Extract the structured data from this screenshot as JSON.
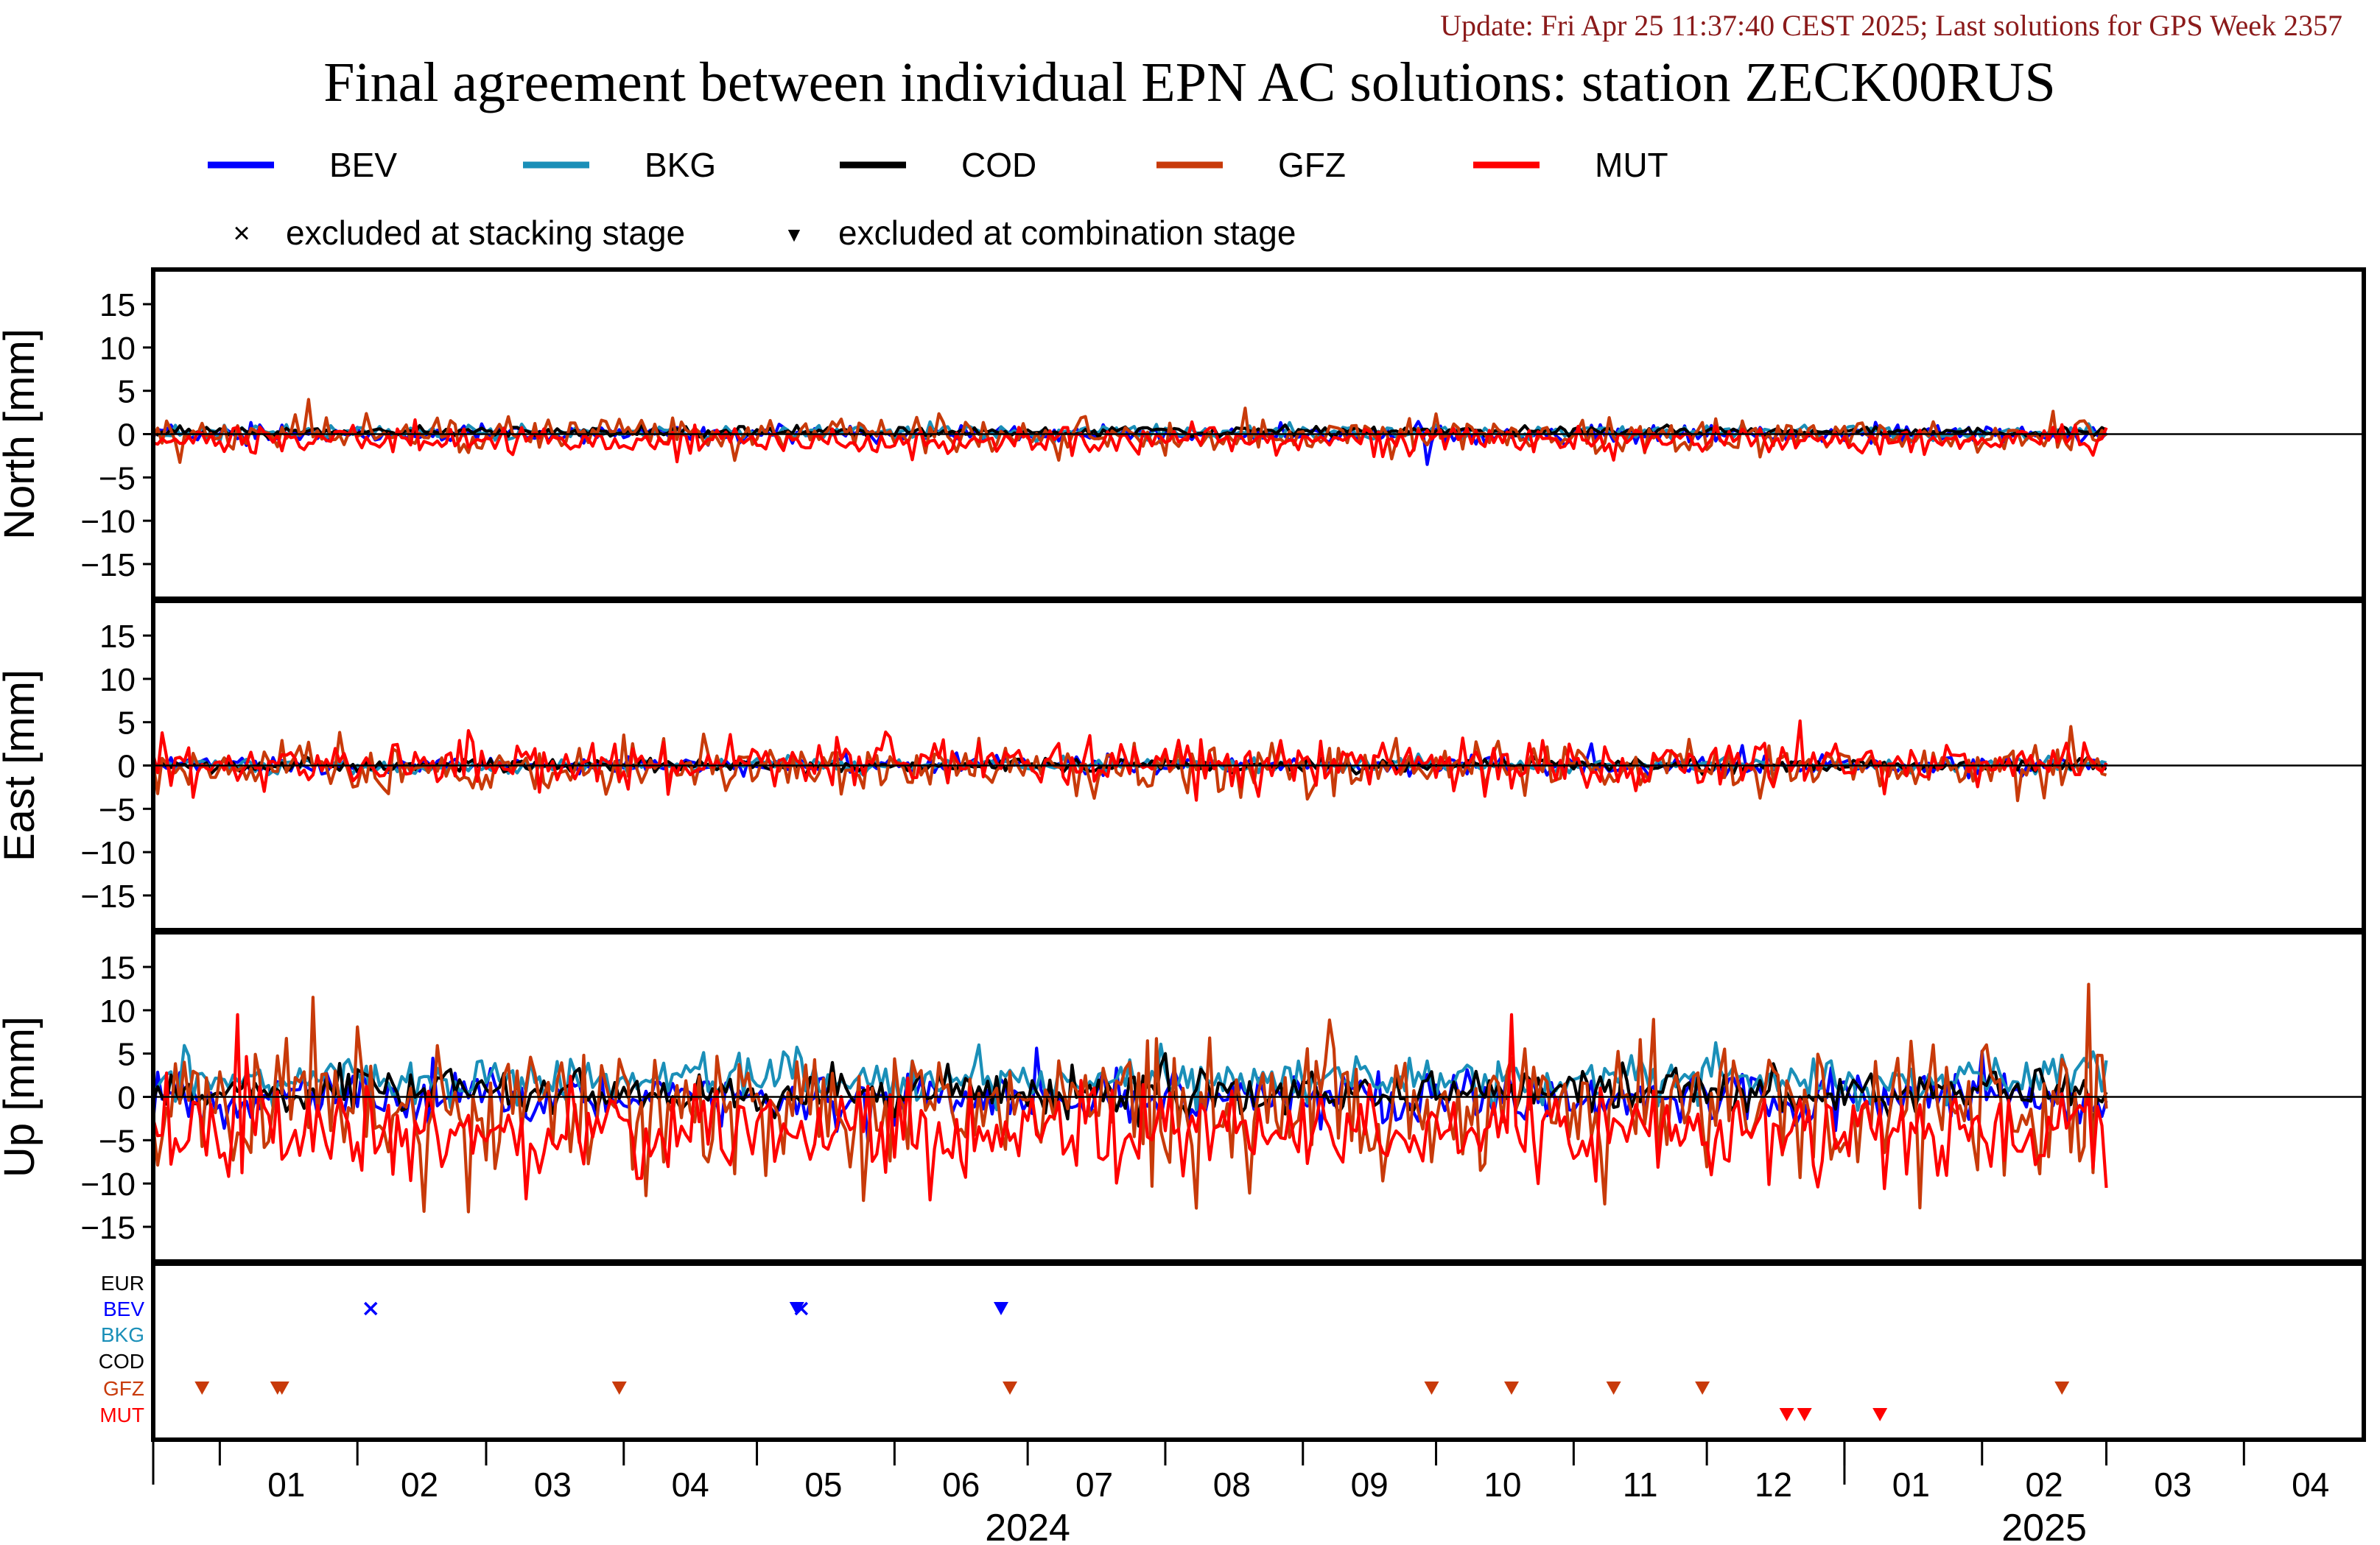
{
  "header": {
    "update_text": "Update: Fri Apr 25 11:37:40 CEST 2025; Last solutions for GPS Week 2357",
    "title": "Final agreement between individual EPN AC solutions: station ZECK00RUS",
    "update_color": "#8b1a1a"
  },
  "legend": {
    "series": [
      {
        "name": "BEV",
        "color": "#0000ff"
      },
      {
        "name": "BKG",
        "color": "#1a8fb8"
      },
      {
        "name": "COD",
        "color": "#000000"
      },
      {
        "name": "GFZ",
        "color": "#c83a0a"
      },
      {
        "name": "MUT",
        "color": "#ff0000"
      }
    ],
    "marker_stacking": "excluded at stacking stage",
    "marker_combination": "excluded at combination stage",
    "marker_stacking_symbol": "×",
    "marker_combination_symbol": "▼"
  },
  "chart_data": [
    {
      "type": "line",
      "panel": "north",
      "ylabel": "North [mm]",
      "ylim": [
        -19,
        19
      ],
      "yticks": [
        -15,
        -10,
        -5,
        0,
        5,
        10,
        15
      ],
      "zero_line": true,
      "x_range": [
        "2023-12-17",
        "2025-04-28"
      ],
      "series": [
        {
          "name": "BEV",
          "mean": 0.0,
          "sd": 0.5,
          "spikes": [
            {
              "date": "2024-09-29",
              "value": -3.5
            }
          ]
        },
        {
          "name": "BKG",
          "mean": 0.2,
          "sd": 0.4,
          "spikes": []
        },
        {
          "name": "COD",
          "mean": 0.3,
          "sd": 0.3,
          "spikes": []
        },
        {
          "name": "GFZ",
          "mean": -0.2,
          "sd": 1.0,
          "spikes": [
            {
              "date": "2024-01-21",
              "value": 4.0
            },
            {
              "date": "2024-08-19",
              "value": 3.0
            }
          ]
        },
        {
          "name": "MUT",
          "mean": -0.7,
          "sd": 0.8,
          "spikes": [
            {
              "date": "2024-04-13",
              "value": -3.2
            },
            {
              "date": "2024-11-10",
              "value": -3.0
            }
          ]
        }
      ]
    },
    {
      "type": "line",
      "panel": "east",
      "ylabel": "East [mm]",
      "ylim": [
        -19,
        19
      ],
      "yticks": [
        -15,
        -10,
        -5,
        0,
        5,
        10,
        15
      ],
      "zero_line": true,
      "x_range": [
        "2023-12-17",
        "2025-04-28"
      ],
      "series": [
        {
          "name": "BEV",
          "mean": 0.0,
          "sd": 0.5,
          "spikes": [
            {
              "date": "2024-11-05",
              "value": 2.5
            },
            {
              "date": "2024-12-09",
              "value": 2.3
            }
          ]
        },
        {
          "name": "BKG",
          "mean": 0.0,
          "sd": 0.4,
          "spikes": []
        },
        {
          "name": "COD",
          "mean": 0.0,
          "sd": 0.4,
          "spikes": []
        },
        {
          "name": "GFZ",
          "mean": -0.3,
          "sd": 1.4,
          "spikes": [
            {
              "date": "2025-02-21",
              "value": 4.5
            }
          ]
        },
        {
          "name": "MUT",
          "mean": 0.2,
          "sd": 1.4,
          "spikes": [
            {
              "date": "2024-08-08",
              "value": -4.0
            }
          ]
        }
      ]
    },
    {
      "type": "line",
      "panel": "up",
      "ylabel": "Up [mm]",
      "ylim": [
        -19,
        19
      ],
      "yticks": [
        -15,
        -10,
        -5,
        0,
        5,
        10,
        15
      ],
      "zero_line": true,
      "x_range": [
        "2023-12-17",
        "2025-04-28"
      ],
      "series": [
        {
          "name": "BEV",
          "mean": 0.0,
          "sd": 1.6,
          "spikes": []
        },
        {
          "name": "BKG",
          "mean": 2.0,
          "sd": 1.3,
          "spikes": [
            {
              "date": "2024-06-20",
              "value": 6.0
            }
          ]
        },
        {
          "name": "COD",
          "mean": 0.6,
          "sd": 1.3,
          "spikes": [
            {
              "date": "2024-08-01",
              "value": 5.0
            }
          ]
        },
        {
          "name": "GFZ",
          "mean": -1.0,
          "sd": 4.0,
          "spikes": [
            {
              "date": "2024-01-22",
              "value": 11.5
            },
            {
              "date": "2025-02-25",
              "value": 13.0
            }
          ]
        },
        {
          "name": "MUT",
          "mean": -4.0,
          "sd": 2.7,
          "spikes": [
            {
              "date": "2024-01-05",
              "value": 9.5
            },
            {
              "date": "2024-10-18",
              "value": 9.5
            }
          ]
        }
      ]
    },
    {
      "type": "scatter",
      "panel": "exclusions",
      "rows": [
        {
          "label": "EUR",
          "color": "#000000"
        },
        {
          "label": "BEV",
          "color": "#0000ff"
        },
        {
          "label": "BKG",
          "color": "#1a8fb8"
        },
        {
          "label": "COD",
          "color": "#000000"
        },
        {
          "label": "GFZ",
          "color": "#c83a0a"
        },
        {
          "label": "MUT",
          "color": "#ff0000"
        }
      ],
      "markers": [
        {
          "row": "BEV",
          "date": "2024-02-04",
          "symbol": "x"
        },
        {
          "row": "BEV",
          "date": "2024-05-10",
          "symbol": "triangle"
        },
        {
          "row": "BEV",
          "date": "2024-05-11",
          "symbol": "x"
        },
        {
          "row": "BEV",
          "date": "2024-06-25",
          "symbol": "triangle"
        },
        {
          "row": "GFZ",
          "date": "2023-12-28",
          "symbol": "triangle"
        },
        {
          "row": "GFZ",
          "date": "2024-01-14",
          "symbol": "triangle"
        },
        {
          "row": "GFZ",
          "date": "2024-01-15",
          "symbol": "triangle"
        },
        {
          "row": "GFZ",
          "date": "2024-03-31",
          "symbol": "triangle"
        },
        {
          "row": "GFZ",
          "date": "2024-06-27",
          "symbol": "triangle"
        },
        {
          "row": "GFZ",
          "date": "2024-09-30",
          "symbol": "triangle"
        },
        {
          "row": "GFZ",
          "date": "2024-10-18",
          "symbol": "triangle"
        },
        {
          "row": "GFZ",
          "date": "2024-11-10",
          "symbol": "triangle"
        },
        {
          "row": "GFZ",
          "date": "2024-11-30",
          "symbol": "triangle"
        },
        {
          "row": "GFZ",
          "date": "2025-02-19",
          "symbol": "triangle"
        },
        {
          "row": "MUT",
          "date": "2024-12-19",
          "symbol": "triangle"
        },
        {
          "row": "MUT",
          "date": "2024-12-23",
          "symbol": "triangle"
        },
        {
          "row": "MUT",
          "date": "2025-01-09",
          "symbol": "triangle"
        }
      ]
    }
  ],
  "x_axis": {
    "month_labels": [
      {
        "label": "01",
        "date": "2024-01-16"
      },
      {
        "label": "02",
        "date": "2024-02-15"
      },
      {
        "label": "03",
        "date": "2024-03-16"
      },
      {
        "label": "04",
        "date": "2024-04-16"
      },
      {
        "label": "05",
        "date": "2024-05-16"
      },
      {
        "label": "06",
        "date": "2024-06-16"
      },
      {
        "label": "07",
        "date": "2024-07-16"
      },
      {
        "label": "08",
        "date": "2024-08-16"
      },
      {
        "label": "09",
        "date": "2024-09-16"
      },
      {
        "label": "10",
        "date": "2024-10-16"
      },
      {
        "label": "11",
        "date": "2024-11-16"
      },
      {
        "label": "12",
        "date": "2024-12-16"
      },
      {
        "label": "01",
        "date": "2025-01-16"
      },
      {
        "label": "02",
        "date": "2025-02-15"
      },
      {
        "label": "03",
        "date": "2025-03-16"
      },
      {
        "label": "04",
        "date": "2025-04-16"
      }
    ],
    "month_boundaries": [
      "2024-01-01",
      "2024-02-01",
      "2024-03-01",
      "2024-04-01",
      "2024-05-01",
      "2024-06-01",
      "2024-07-01",
      "2024-08-01",
      "2024-09-01",
      "2024-10-01",
      "2024-11-01",
      "2024-12-01",
      "2025-01-01",
      "2025-02-01",
      "2025-03-01",
      "2025-04-01"
    ],
    "year_labels": [
      {
        "label": "2024",
        "date": "2024-07-01"
      },
      {
        "label": "2025",
        "date": "2025-02-15"
      }
    ],
    "year_boundary": "2025-01-01",
    "data_start": "2023-12-17",
    "data_end": "2025-03-01"
  }
}
